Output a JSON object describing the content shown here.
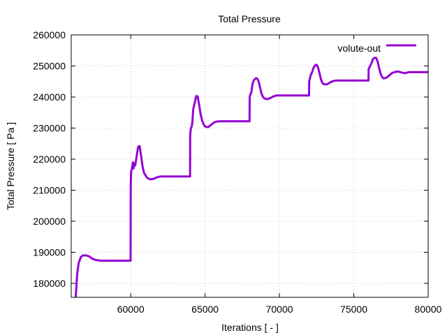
{
  "chart_data": {
    "type": "line",
    "title": "Total Pressure",
    "xlabel": "Iterations [ - ]",
    "ylabel": "Total Pressure [ Pa ]",
    "xlim": [
      56000,
      80000
    ],
    "ylim": [
      175500,
      260000
    ],
    "xticks": [
      60000,
      65000,
      70000,
      75000,
      80000
    ],
    "yticks": [
      180000,
      190000,
      200000,
      210000,
      220000,
      230000,
      240000,
      250000,
      260000
    ],
    "grid": true,
    "legend": "top-right",
    "series": [
      {
        "name": "volute-out",
        "color": "#9400d3",
        "x": [
          56300,
          56400,
          56500,
          56650,
          56800,
          57000,
          57200,
          57400,
          57600,
          57800,
          58000,
          58500,
          59000,
          59500,
          59990,
          60000,
          60030,
          60100,
          60150,
          60200,
          60250,
          60300,
          60400,
          60500,
          60600,
          60700,
          60800,
          60900,
          61100,
          61300,
          61500,
          61800,
          62000,
          62500,
          63000,
          63500,
          63990,
          64000,
          64050,
          64100,
          64150,
          64200,
          64300,
          64400,
          64500,
          64600,
          64700,
          64800,
          64900,
          65000,
          65200,
          65400,
          65600,
          65800,
          66000,
          66500,
          67000,
          67500,
          67990,
          68000,
          68050,
          68100,
          68200,
          68300,
          68400,
          68500,
          68600,
          68700,
          68800,
          68900,
          69000,
          69200,
          69400,
          69600,
          69800,
          70000,
          70500,
          71000,
          71500,
          71990,
          72000,
          72100,
          72200,
          72300,
          72400,
          72500,
          72600,
          72700,
          72800,
          72900,
          73000,
          73200,
          73400,
          73600,
          73800,
          74000,
          74500,
          75000,
          75500,
          75990,
          76000,
          76100,
          76200,
          76300,
          76400,
          76500,
          76600,
          76700,
          76800,
          76900,
          77000,
          77200,
          77400,
          77600,
          77800,
          78000,
          78200,
          78400,
          78500,
          78600,
          78800,
          79000,
          79500,
          80000
        ],
        "y": [
          175500,
          183000,
          186500,
          188500,
          189000,
          189000,
          188700,
          188000,
          187600,
          187400,
          187300,
          187300,
          187300,
          187300,
          187300,
          212000,
          216000,
          217500,
          219000,
          217000,
          218500,
          218000,
          221000,
          224000,
          224200,
          221000,
          217500,
          215500,
          214000,
          213500,
          213600,
          214200,
          214400,
          214400,
          214400,
          214400,
          214400,
          228000,
          230000,
          230500,
          232000,
          236000,
          238000,
          240300,
          240200,
          237500,
          234500,
          232500,
          231200,
          230500,
          230300,
          231000,
          231800,
          232100,
          232200,
          232200,
          232200,
          232200,
          232200,
          240000,
          241000,
          241200,
          244500,
          245500,
          246000,
          246000,
          245000,
          243000,
          241000,
          240000,
          239500,
          239300,
          239700,
          240200,
          240500,
          240500,
          240500,
          240500,
          240500,
          240500,
          245000,
          247000,
          248000,
          249500,
          250200,
          250400,
          249500,
          247500,
          245500,
          244500,
          244100,
          244100,
          244700,
          245100,
          245300,
          245300,
          245300,
          245300,
          245300,
          245300,
          249000,
          250000,
          251000,
          252300,
          252600,
          252600,
          251500,
          249500,
          247500,
          246500,
          246000,
          246200,
          247000,
          247800,
          248100,
          248200,
          247900,
          247700,
          247700,
          247900,
          248000,
          248000,
          248000,
          248000
        ]
      }
    ]
  }
}
